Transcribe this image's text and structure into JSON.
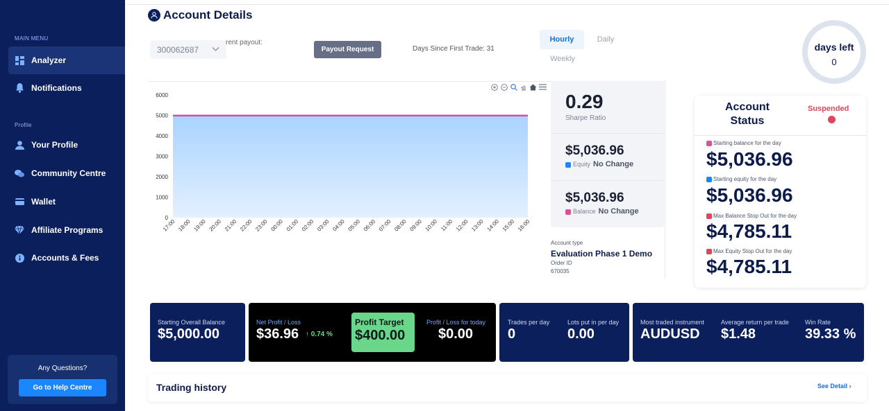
{
  "sidebar": {
    "main_menu_label": "MAIN MENU",
    "items_main": [
      {
        "label": "Analyzer",
        "icon": "dashboard-icon",
        "active": true
      },
      {
        "label": "Notifications",
        "icon": "bell-icon",
        "active": false
      }
    ],
    "profile_label": "Profile",
    "items_profile": [
      {
        "label": "Your Profile",
        "icon": "user-icon"
      },
      {
        "label": "Community Centre",
        "icon": "chat-icon"
      },
      {
        "label": "Wallet",
        "icon": "wallet-icon"
      },
      {
        "label": "Affiliate Programs",
        "icon": "diamond-icon"
      },
      {
        "label": "Accounts & Fees",
        "icon": "info-icon"
      }
    ],
    "help": {
      "question": "Any Questions?",
      "button": "Go to Help Centre"
    }
  },
  "header": {
    "title": "Account Details",
    "account_number": "300062687",
    "payout_label": "rent payout:",
    "payout_button": "Payout Request",
    "days_since_first_trade": "Days Since First Trade: 31",
    "tabs": [
      {
        "label": "Hourly",
        "active": true
      },
      {
        "label": "Daily",
        "active": false
      },
      {
        "label": "Weekly",
        "active": false
      }
    ],
    "days_left": {
      "title": "days left",
      "value": "0"
    }
  },
  "chart_data": {
    "type": "area",
    "x": [
      "17:00",
      "18:00",
      "19:00",
      "20:00",
      "21:00",
      "22:00",
      "23:00",
      "00:00",
      "01:00",
      "02:00",
      "03:00",
      "04:00",
      "05:00",
      "06:00",
      "07:00",
      "08:00",
      "09:00",
      "10:00",
      "11:00",
      "12:00",
      "13:00",
      "14:00",
      "15:00",
      "16:00"
    ],
    "series": [
      {
        "values": [
          5000,
          5000,
          5000,
          5000,
          5000,
          5000,
          5000,
          5000,
          5000,
          5000,
          5000,
          5000,
          5000,
          5000,
          5000,
          5000,
          5000,
          5000,
          5000,
          5000,
          5000,
          5000,
          5000,
          5000
        ],
        "color": "#bfe0ff"
      },
      {
        "values": [
          4990,
          4990,
          4990,
          4990,
          4990,
          4990,
          4990,
          4990,
          4990,
          4990,
          4990,
          4990,
          4990,
          4990,
          4990,
          4990,
          4990,
          4990,
          4990,
          4990,
          4990,
          4990,
          4990,
          4990
        ],
        "color": "#d44fa0"
      }
    ],
    "yticks": [
      "0",
      "1000",
      "2000",
      "3000",
      "4000",
      "5000",
      "6000"
    ],
    "ylim": [
      0,
      6000
    ]
  },
  "metrics": {
    "sharpe_value": "0.29",
    "sharpe_label": "Sharpe Ratio",
    "equity_value": "$5,036.96",
    "equity_label": "Equity",
    "equity_change": "No Change",
    "balance_value": "$5,036.96",
    "balance_label": "Balance",
    "balance_change": "No Change",
    "colors": {
      "equity": "#1a86ff",
      "balance": "#e0509a"
    }
  },
  "account_info": {
    "type_label": "Account type",
    "type_value": "Evaluation Phase 1 Demo",
    "order_label": "Order ID",
    "order_value": "670035"
  },
  "status": {
    "title": "Account Status",
    "state": "Suspended",
    "rows": [
      {
        "label": "Starting balance for the day",
        "value": "$5,036.96",
        "color": "#e0509a"
      },
      {
        "label": "Starting equity for the day",
        "value": "$5,036.96",
        "color": "#1a86ff"
      },
      {
        "label": "Max Balance Stop Out for the day",
        "value": "$4,785.11",
        "color": "#e0465a"
      },
      {
        "label": "Max Equity Stop Out for the day",
        "value": "$4,785.11",
        "color": "#e0465a"
      }
    ]
  },
  "cards": {
    "starting_balance_label": "Starting Overall Balance",
    "starting_balance_value": "$5,000.00",
    "net_pl_label": "Net Profit / Loss",
    "net_pl_value": "$36.96",
    "net_pl_pct": "0.74 %",
    "profit_target_label": "Profit Target",
    "profit_target_value": "$400.00",
    "pl_today_label": "Profit / Loss for today",
    "pl_today_value": "$0.00",
    "trades_label": "Trades per day",
    "trades_value": "0",
    "lots_label": "Lots put in per day",
    "lots_value": "0.00",
    "instrument_label": "Most traded instrument",
    "instrument_value": "AUDUSD",
    "avg_return_label": "Average return per trade",
    "avg_return_value": "$1.48",
    "win_rate_label": "Win Rate",
    "win_rate_value": "39.33 %"
  },
  "history": {
    "title": "Trading history",
    "see_detail": "See Detail"
  }
}
